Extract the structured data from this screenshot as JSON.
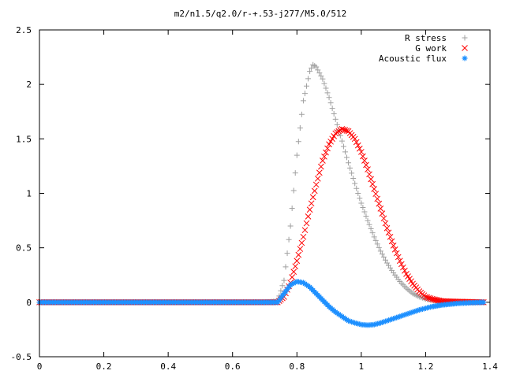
{
  "chart_data": {
    "type": "scatter",
    "title": "m2/n1.5/q2.0/r-+.53-j277/M5.0/512",
    "xlabel": "",
    "ylabel": "",
    "xlim": [
      0,
      1.4
    ],
    "ylim": [
      -0.5,
      2.5
    ],
    "x_ticks": [
      "0",
      "0.2",
      "0.4",
      "0.6",
      "0.8",
      "1",
      "1.2",
      "1.4"
    ],
    "y_ticks": [
      "-0.5",
      "0",
      "0.5",
      "1",
      "1.5",
      "2",
      "2.5"
    ],
    "grid": false,
    "legend_position": "top-right",
    "series": [
      {
        "name": "R stress",
        "marker": "plus",
        "color": "#a0a0a0",
        "x": [
          0,
          0.1,
          0.2,
          0.3,
          0.4,
          0.5,
          0.6,
          0.7,
          0.74,
          0.76,
          0.78,
          0.8,
          0.82,
          0.84,
          0.85,
          0.86,
          0.88,
          0.9,
          0.92,
          0.94,
          0.96,
          0.98,
          1.0,
          1.02,
          1.04,
          1.06,
          1.08,
          1.1,
          1.12,
          1.14,
          1.16,
          1.18,
          1.2,
          1.22,
          1.25,
          1.3,
          1.35,
          1.38
        ],
        "y": [
          0,
          0,
          0,
          0,
          0,
          0,
          0,
          0,
          0.01,
          0.2,
          0.7,
          1.35,
          1.85,
          2.12,
          2.18,
          2.16,
          2.05,
          1.88,
          1.68,
          1.48,
          1.28,
          1.09,
          0.91,
          0.75,
          0.6,
          0.47,
          0.36,
          0.27,
          0.19,
          0.13,
          0.08,
          0.05,
          0.03,
          0.02,
          0.01,
          0.005,
          0.002,
          0.0
        ]
      },
      {
        "name": "G work",
        "marker": "cross",
        "color": "#ff0000",
        "x": [
          0,
          0.1,
          0.2,
          0.3,
          0.4,
          0.5,
          0.6,
          0.7,
          0.74,
          0.76,
          0.78,
          0.8,
          0.82,
          0.84,
          0.86,
          0.88,
          0.9,
          0.92,
          0.94,
          0.96,
          0.98,
          1.0,
          1.02,
          1.04,
          1.06,
          1.08,
          1.1,
          1.12,
          1.14,
          1.16,
          1.18,
          1.2,
          1.22,
          1.25,
          1.3,
          1.35,
          1.38
        ],
        "y": [
          0,
          0,
          0,
          0,
          0,
          0,
          0,
          0,
          0.0,
          0.05,
          0.18,
          0.38,
          0.6,
          0.85,
          1.08,
          1.3,
          1.45,
          1.55,
          1.59,
          1.57,
          1.5,
          1.38,
          1.22,
          1.04,
          0.86,
          0.68,
          0.52,
          0.38,
          0.26,
          0.17,
          0.1,
          0.05,
          0.03,
          0.01,
          0.005,
          0.002,
          0.0
        ]
      },
      {
        "name": "Acoustic flux",
        "marker": "star",
        "color": "#1e90ff",
        "x": [
          0,
          0.1,
          0.2,
          0.3,
          0.4,
          0.5,
          0.6,
          0.7,
          0.74,
          0.76,
          0.78,
          0.8,
          0.82,
          0.84,
          0.86,
          0.88,
          0.9,
          0.92,
          0.94,
          0.96,
          0.98,
          1.0,
          1.02,
          1.04,
          1.06,
          1.08,
          1.1,
          1.12,
          1.14,
          1.16,
          1.18,
          1.2,
          1.22,
          1.25,
          1.3,
          1.35,
          1.38
        ],
        "y": [
          0,
          0,
          0,
          0,
          0,
          0,
          0,
          0,
          0.0,
          0.08,
          0.16,
          0.19,
          0.18,
          0.14,
          0.08,
          0.02,
          -0.04,
          -0.09,
          -0.13,
          -0.17,
          -0.19,
          -0.205,
          -0.21,
          -0.205,
          -0.19,
          -0.17,
          -0.15,
          -0.13,
          -0.11,
          -0.09,
          -0.07,
          -0.055,
          -0.04,
          -0.025,
          -0.01,
          -0.003,
          0.0
        ]
      }
    ]
  }
}
